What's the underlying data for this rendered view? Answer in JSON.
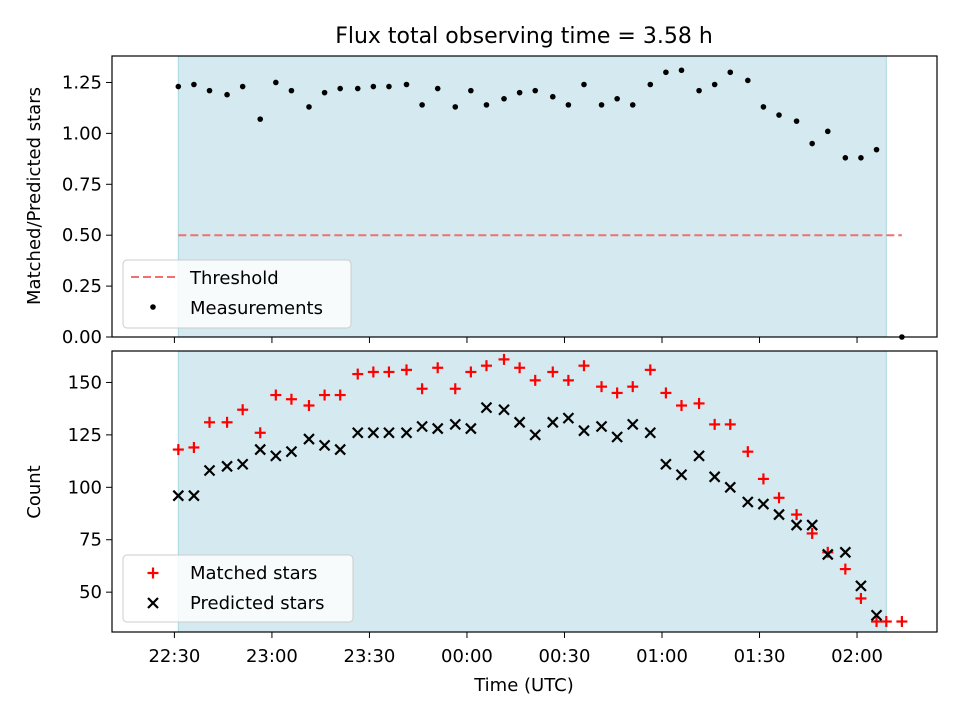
{
  "figure": {
    "title": "Flux total observing time = 3.58 h"
  },
  "colors": {
    "shade": "#d4eaf0",
    "shade_edge": "#a8d8e0",
    "threshold": "#f07070",
    "matched": "#ff0000",
    "predicted": "#000000",
    "measurement": "#000000"
  },
  "x_axis": {
    "label": "Time (UTC)",
    "ticks": [
      {
        "h": 22.5,
        "label": "22:30"
      },
      {
        "h": 23.0,
        "label": "23:00"
      },
      {
        "h": 23.5,
        "label": "23:30"
      },
      {
        "h": 24.0,
        "label": "00:00"
      },
      {
        "h": 24.5,
        "label": "00:30"
      },
      {
        "h": 25.0,
        "label": "01:00"
      },
      {
        "h": 25.5,
        "label": "01:30"
      },
      {
        "h": 26.0,
        "label": "02:00"
      }
    ]
  },
  "chart_data": [
    {
      "type": "scatter",
      "title": "Flux total observing time = 3.58 h",
      "ylabel": "Matched/Predicted stars",
      "xlabel": "",
      "xlim": [
        22.18,
        26.41
      ],
      "ylim": [
        0.0,
        1.38
      ],
      "yticks": [
        "0.00",
        "0.25",
        "0.50",
        "0.75",
        "1.00",
        "1.25"
      ],
      "shaded_span": [
        22.52,
        26.15
      ],
      "threshold": {
        "name": "Threshold",
        "y": 0.5,
        "x_range": [
          22.52,
          26.23
        ]
      },
      "legend": {
        "position": "lower-left",
        "entries": [
          "Threshold",
          "Measurements"
        ]
      },
      "series": [
        {
          "name": "Measurements",
          "x": [
            22.52,
            22.6,
            22.68,
            22.77,
            22.85,
            22.94,
            23.02,
            23.1,
            23.19,
            23.27,
            23.35,
            23.44,
            23.52,
            23.6,
            23.69,
            23.77,
            23.85,
            23.94,
            24.02,
            24.1,
            24.19,
            24.27,
            24.35,
            24.44,
            24.52,
            24.6,
            24.69,
            24.77,
            24.85,
            24.94,
            25.02,
            25.1,
            25.19,
            25.27,
            25.35,
            25.44,
            25.52,
            25.6,
            25.69,
            25.77,
            25.85,
            25.94,
            26.02,
            26.1,
            26.23
          ],
          "y": [
            1.23,
            1.24,
            1.21,
            1.19,
            1.23,
            1.07,
            1.25,
            1.21,
            1.13,
            1.2,
            1.22,
            1.22,
            1.23,
            1.23,
            1.24,
            1.14,
            1.22,
            1.13,
            1.21,
            1.14,
            1.17,
            1.2,
            1.21,
            1.18,
            1.14,
            1.24,
            1.14,
            1.17,
            1.14,
            1.24,
            1.3,
            1.31,
            1.21,
            1.24,
            1.3,
            1.26,
            1.13,
            1.09,
            1.06,
            0.95,
            1.01,
            0.88,
            0.88,
            0.92,
            0.0
          ]
        }
      ]
    },
    {
      "type": "scatter",
      "ylabel": "Count",
      "xlabel": "Time (UTC)",
      "xlim": [
        22.18,
        26.41
      ],
      "ylim": [
        31,
        165
      ],
      "yticks": [
        50,
        75,
        100,
        125,
        150
      ],
      "shaded_span": [
        22.52,
        26.15
      ],
      "legend": {
        "position": "lower-left",
        "entries": [
          "Matched stars",
          "Predicted stars"
        ]
      },
      "series": [
        {
          "name": "Matched stars",
          "marker": "plus",
          "x": [
            22.52,
            22.6,
            22.68,
            22.77,
            22.85,
            22.94,
            23.02,
            23.1,
            23.19,
            23.27,
            23.35,
            23.44,
            23.52,
            23.6,
            23.69,
            23.77,
            23.85,
            23.94,
            24.02,
            24.1,
            24.19,
            24.27,
            24.35,
            24.44,
            24.52,
            24.6,
            24.69,
            24.77,
            24.85,
            24.94,
            25.02,
            25.1,
            25.19,
            25.27,
            25.35,
            25.44,
            25.52,
            25.6,
            25.69,
            25.77,
            25.85,
            25.94,
            26.02,
            26.1,
            26.15,
            26.23
          ],
          "y": [
            118,
            119,
            131,
            131,
            137,
            126,
            144,
            142,
            139,
            144,
            144,
            154,
            155,
            155,
            156,
            147,
            157,
            147,
            155,
            158,
            161,
            157,
            151,
            155,
            151,
            158,
            148,
            145,
            148,
            156,
            145,
            139,
            140,
            130,
            130,
            117,
            104,
            95,
            87,
            78,
            69,
            61,
            47,
            36,
            36,
            36
          ]
        },
        {
          "name": "Predicted stars",
          "marker": "x",
          "x": [
            22.52,
            22.6,
            22.68,
            22.77,
            22.85,
            22.94,
            23.02,
            23.1,
            23.19,
            23.27,
            23.35,
            23.44,
            23.52,
            23.6,
            23.69,
            23.77,
            23.85,
            23.94,
            24.02,
            24.1,
            24.19,
            24.27,
            24.35,
            24.44,
            24.52,
            24.6,
            24.69,
            24.77,
            24.85,
            24.94,
            25.02,
            25.1,
            25.19,
            25.27,
            25.35,
            25.44,
            25.52,
            25.6,
            25.69,
            25.77,
            25.85,
            25.94,
            26.02,
            26.1
          ],
          "y": [
            96,
            96,
            108,
            110,
            111,
            118,
            115,
            117,
            123,
            120,
            118,
            126,
            126,
            126,
            126,
            129,
            128,
            130,
            128,
            138,
            137,
            131,
            125,
            131,
            133,
            127,
            129,
            124,
            130,
            126,
            111,
            106,
            115,
            105,
            100,
            93,
            92,
            87,
            82,
            82,
            68,
            69,
            53,
            39
          ]
        }
      ]
    }
  ]
}
